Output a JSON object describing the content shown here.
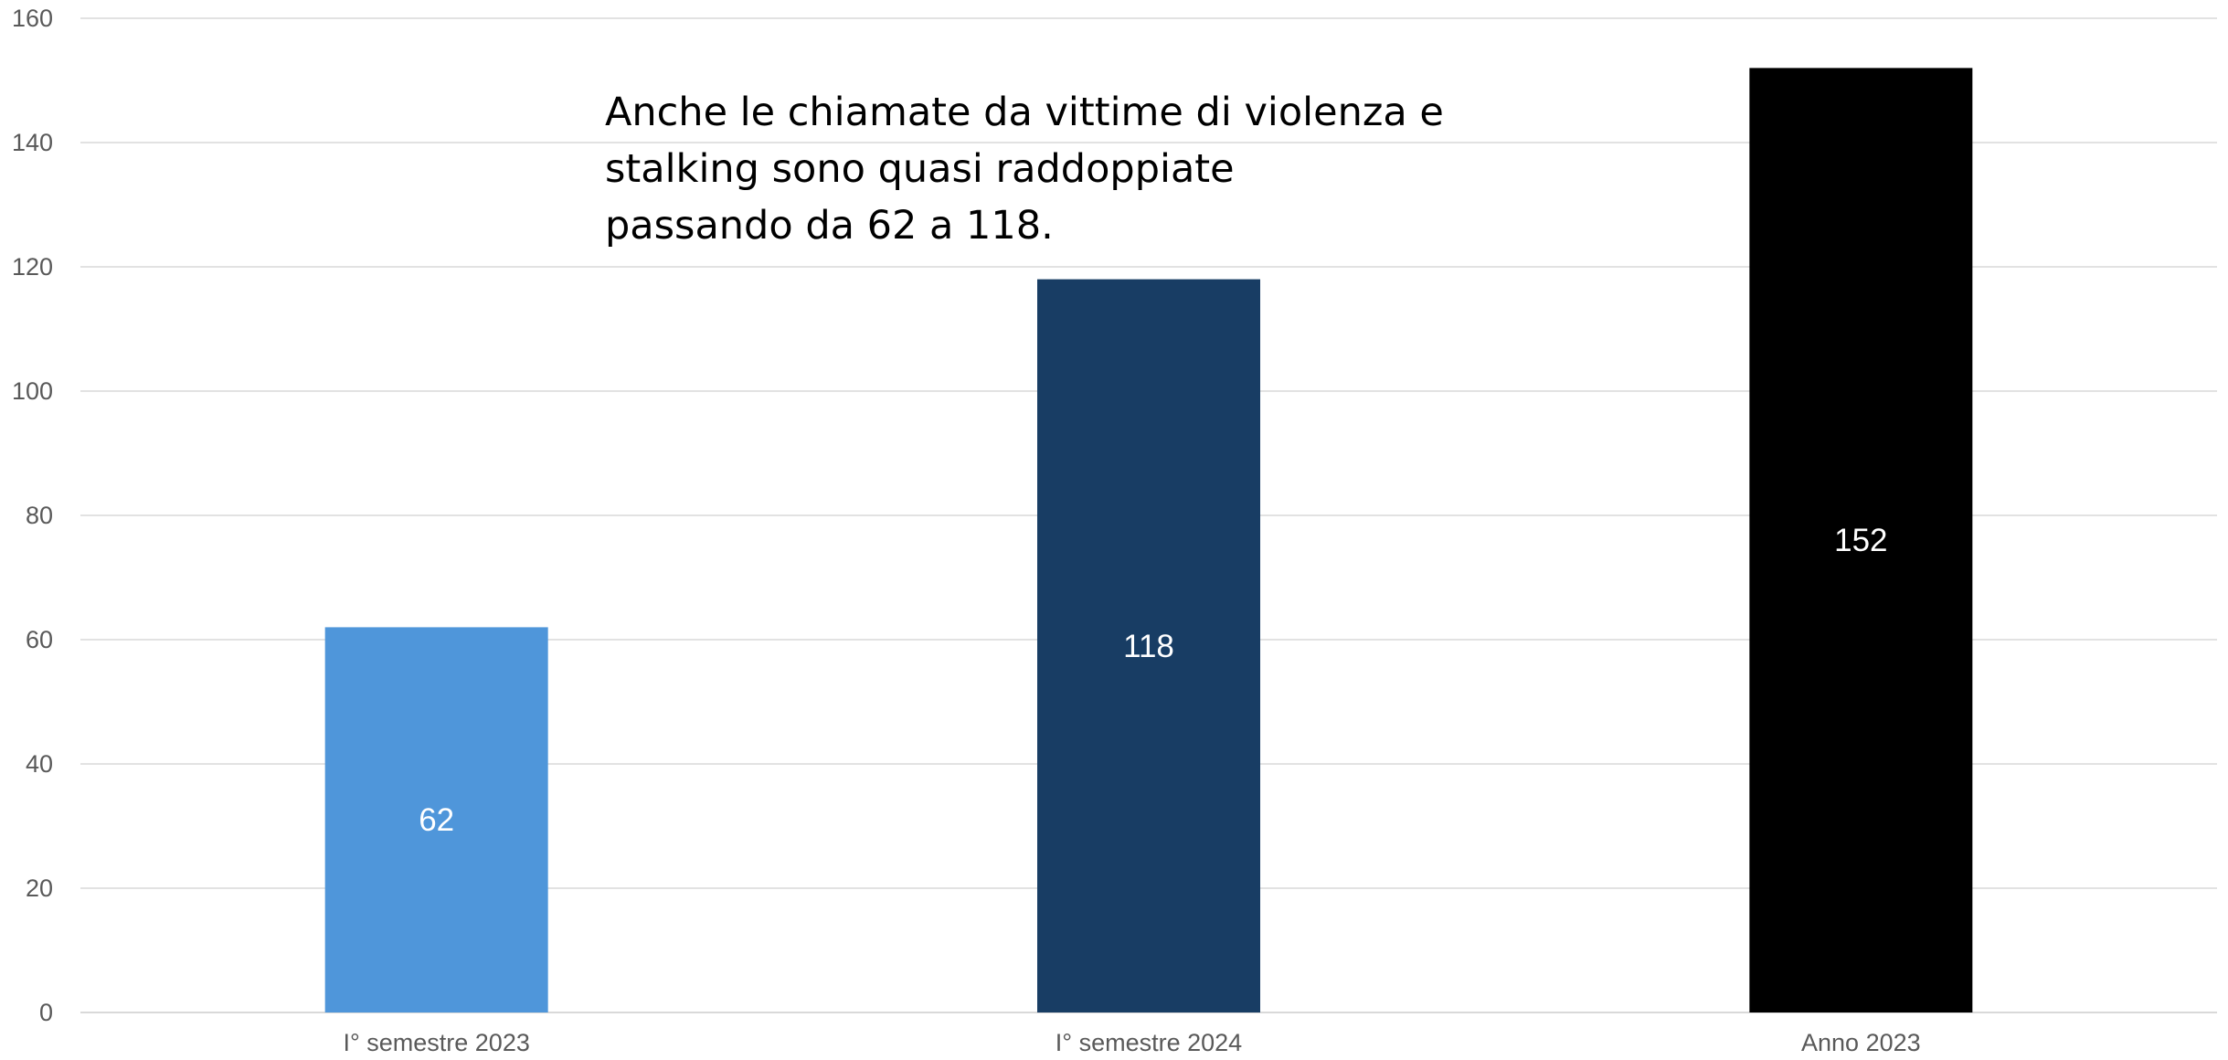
{
  "chart_data": {
    "type": "bar",
    "categories": [
      "I° semestre 2023",
      "I° semestre 2024",
      "Anno 2023"
    ],
    "values": [
      62,
      118,
      152
    ],
    "colors": [
      "#4f96da",
      "#183d64",
      "#000000"
    ],
    "data_labels": [
      "62",
      "118",
      "152"
    ],
    "ylim": [
      0,
      160
    ],
    "yticks": [
      "0",
      "20",
      "40",
      "60",
      "80",
      "100",
      "120",
      "140",
      "160"
    ],
    "grid": true,
    "legend": "none",
    "title": "",
    "xlabel": "",
    "ylabel": "",
    "annotation": {
      "lines": [
        "Anche le chiamate da vittime di violenza e",
        "stalking sono quasi raddoppiate",
        "passando da 62 a 118."
      ]
    }
  }
}
